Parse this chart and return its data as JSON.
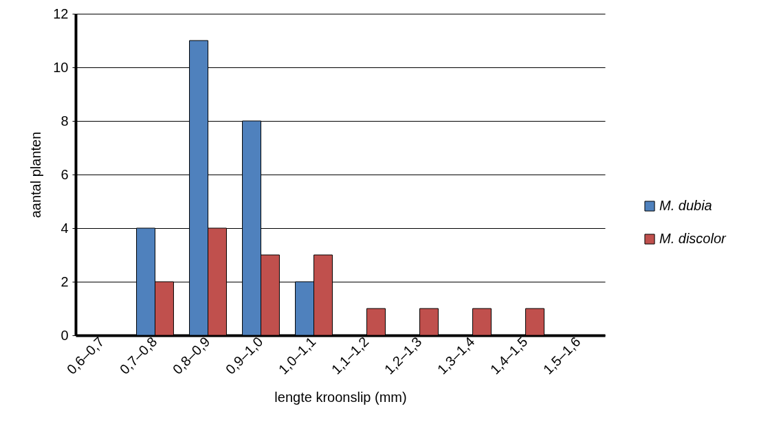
{
  "chart_data": {
    "type": "bar",
    "xlabel": "lengte kroonslip (mm)",
    "ylabel": "aantal planten",
    "categories": [
      "0,6–0,7",
      "0,7–0,8",
      "0,8–0,9",
      "0,9–1,0",
      "1,0–1,1",
      "1,1–1,2",
      "1,2–1,3",
      "1,3–1,4",
      "1,4–1,5",
      "1,5–1,6"
    ],
    "series": [
      {
        "name": "M. dubia",
        "color": "#4f81bd",
        "values": [
          0,
          4,
          11,
          8,
          2,
          0,
          0,
          0,
          0,
          0
        ]
      },
      {
        "name": "M. discolor",
        "color": "#c0504d",
        "values": [
          0,
          2,
          4,
          3,
          3,
          1,
          1,
          1,
          1,
          0
        ]
      }
    ],
    "ylim": [
      0,
      12
    ],
    "yticks": [
      0,
      2,
      4,
      6,
      8,
      10,
      12
    ],
    "grid": "y",
    "legend": "right"
  }
}
